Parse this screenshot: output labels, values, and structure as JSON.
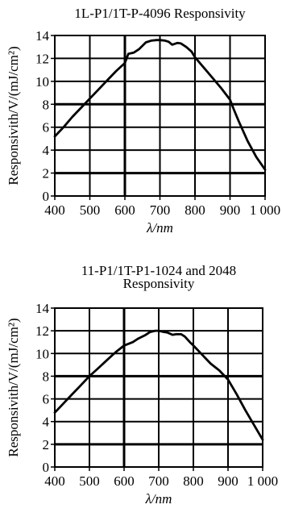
{
  "chart_data": [
    {
      "type": "line",
      "title_lines": [
        "1L-P1/1T-P-4096 Responsivity"
      ],
      "xlabel": "λ/nm",
      "ylabel": "Responsivith/V/(mJ/cm²)",
      "xlim": [
        400,
        1000
      ],
      "ylim": [
        0,
        14
      ],
      "x_ticks": [
        400,
        500,
        600,
        700,
        800,
        900,
        1000
      ],
      "x_tick_labels": [
        "400",
        "500",
        "600",
        "700",
        "800",
        "900",
        "1 000"
      ],
      "y_ticks": [
        0,
        2,
        4,
        6,
        8,
        10,
        12,
        14
      ],
      "y_tick_labels": [
        "0",
        "2",
        "4",
        "6",
        "8",
        "10",
        "12",
        "14"
      ],
      "grid": true,
      "series": [
        {
          "x": [
            400,
            425,
            450,
            475,
            500,
            525,
            550,
            575,
            600,
            610,
            625,
            640,
            650,
            660,
            675,
            690,
            700,
            715,
            725,
            735,
            750,
            760,
            775,
            790,
            800,
            825,
            850,
            875,
            900,
            910,
            925,
            950,
            975,
            1000
          ],
          "y": [
            5.2,
            6.0,
            6.9,
            7.7,
            8.5,
            9.3,
            10.1,
            10.9,
            11.6,
            12.4,
            12.5,
            12.8,
            13.1,
            13.4,
            13.55,
            13.6,
            13.6,
            13.55,
            13.45,
            13.2,
            13.35,
            13.3,
            13.0,
            12.6,
            12.1,
            11.2,
            10.3,
            9.4,
            8.4,
            7.6,
            6.5,
            4.8,
            3.4,
            2.3
          ]
        }
      ]
    },
    {
      "type": "line",
      "title_lines": [
        "11-P1/1T-P1-1024 and 2048",
        "Responsivity"
      ],
      "xlabel": "λ/nm",
      "ylabel": "Responsivith/V/(mJ/cm²)",
      "xlim": [
        400,
        1000
      ],
      "ylim": [
        0,
        14
      ],
      "x_ticks": [
        400,
        500,
        600,
        700,
        800,
        900,
        1000
      ],
      "x_tick_labels": [
        "400",
        "500",
        "600",
        "700",
        "800",
        "900",
        "1 000"
      ],
      "y_ticks": [
        0,
        2,
        4,
        6,
        8,
        10,
        12,
        14
      ],
      "y_tick_labels": [
        "0",
        "2",
        "4",
        "6",
        "8",
        "10",
        "12",
        "14"
      ],
      "grid": true,
      "series": [
        {
          "x": [
            400,
            425,
            450,
            475,
            500,
            525,
            550,
            575,
            600,
            625,
            640,
            660,
            675,
            690,
            700,
            715,
            725,
            740,
            750,
            765,
            775,
            790,
            800,
            825,
            850,
            875,
            900,
            925,
            950,
            975,
            1000
          ],
          "y": [
            4.8,
            5.6,
            6.4,
            7.2,
            8.0,
            8.7,
            9.4,
            10.1,
            10.7,
            11.0,
            11.3,
            11.6,
            11.9,
            12.0,
            12.0,
            11.9,
            11.85,
            11.65,
            11.7,
            11.7,
            11.5,
            11.0,
            10.7,
            9.9,
            9.1,
            8.5,
            7.7,
            6.4,
            5.0,
            3.7,
            2.4
          ]
        }
      ]
    }
  ]
}
